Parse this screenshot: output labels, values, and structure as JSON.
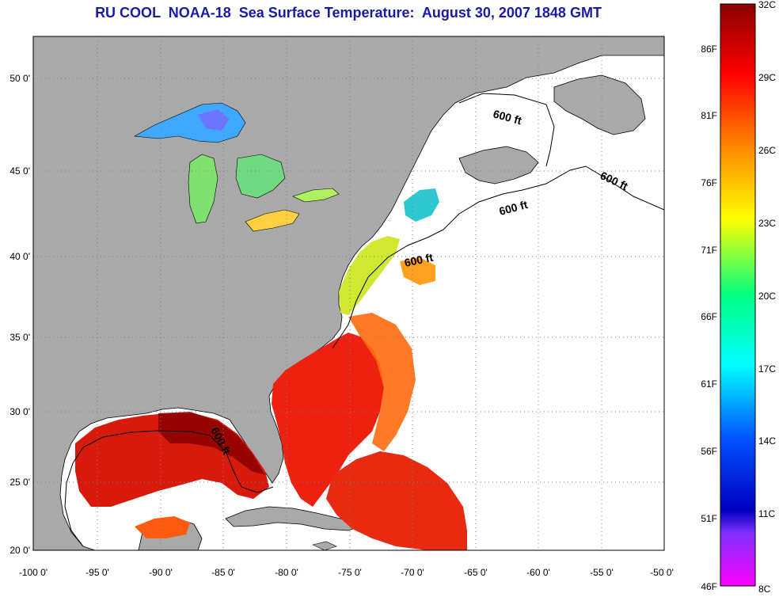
{
  "title": "RU COOL  NOAA-18  Sea Surface Temperature:  August 30, 2007 1848 GMT",
  "map": {
    "lon_labels": [
      "-100 0'",
      "-95 0'",
      "-90 0'",
      "-85 0'",
      "-80 0'",
      "-75 0'",
      "-70 0'",
      "-65 0'",
      "-60 0'",
      "-55 0'",
      "-50 0'"
    ],
    "lat_labels": [
      "50 0'",
      "45 0'",
      "40 0'",
      "35 0'",
      "30 0'",
      "25 0'",
      "20 0'"
    ],
    "depth_labels": [
      "600 ft",
      "600 ft",
      "600 ft",
      "600 ft",
      "600 ft"
    ],
    "colors": {
      "land": "#a9a9a9",
      "no_data": "#ffffff",
      "grid": "#808080"
    }
  },
  "colorbar": {
    "celsius": [
      "32C",
      "29C",
      "26C",
      "23C",
      "20C",
      "17C",
      "14C",
      "11C",
      "8C"
    ],
    "fahrenheit": [
      "86F",
      "81F",
      "76F",
      "71F",
      "66F",
      "61F",
      "56F",
      "51F",
      "46F"
    ]
  }
}
